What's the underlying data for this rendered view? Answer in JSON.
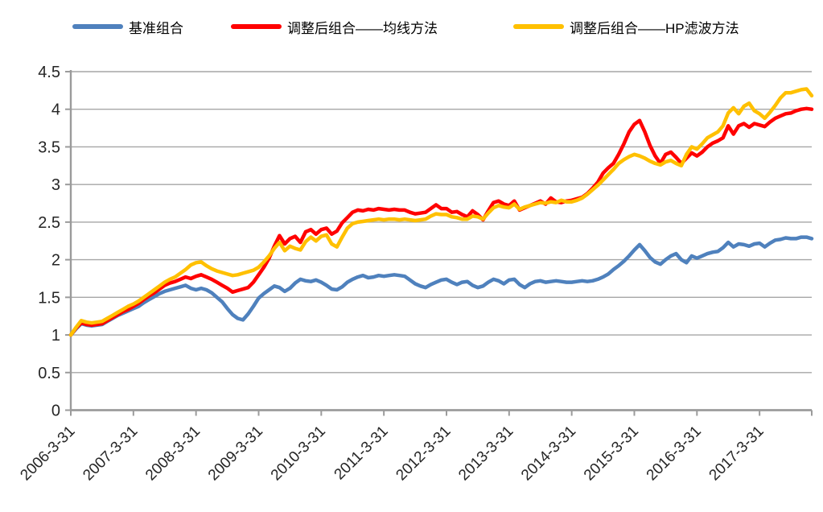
{
  "chart_data": {
    "type": "line",
    "title": "",
    "xlabel": "",
    "ylabel": "",
    "ylim": [
      0,
      4.5
    ],
    "y_tick_step": 0.5,
    "grid": true,
    "legend_position": "top",
    "x_tick_labels": [
      "2006-3-31",
      "2007-3-31",
      "2008-3-31",
      "2009-3-31",
      "2010-3-31",
      "2011-3-31",
      "2012-3-31",
      "2013-3-31",
      "2014-3-31",
      "2015-3-31",
      "2016-3-31",
      "2017-3-31"
    ],
    "x_tick_every_n_points": 12,
    "x_frequency": "monthly",
    "series": [
      {
        "name": "基准组合",
        "color": "#4F81BD",
        "values": [
          1.0,
          1.08,
          1.15,
          1.13,
          1.12,
          1.13,
          1.14,
          1.18,
          1.22,
          1.26,
          1.29,
          1.32,
          1.35,
          1.38,
          1.43,
          1.47,
          1.51,
          1.55,
          1.58,
          1.6,
          1.62,
          1.64,
          1.66,
          1.62,
          1.6,
          1.62,
          1.6,
          1.56,
          1.5,
          1.44,
          1.35,
          1.27,
          1.22,
          1.2,
          1.28,
          1.38,
          1.49,
          1.55,
          1.6,
          1.65,
          1.63,
          1.58,
          1.62,
          1.69,
          1.74,
          1.72,
          1.71,
          1.73,
          1.7,
          1.66,
          1.61,
          1.6,
          1.64,
          1.7,
          1.74,
          1.77,
          1.79,
          1.76,
          1.77,
          1.79,
          1.78,
          1.79,
          1.8,
          1.79,
          1.78,
          1.73,
          1.68,
          1.65,
          1.63,
          1.67,
          1.7,
          1.73,
          1.74,
          1.7,
          1.67,
          1.7,
          1.71,
          1.66,
          1.63,
          1.65,
          1.7,
          1.74,
          1.72,
          1.68,
          1.73,
          1.74,
          1.67,
          1.63,
          1.68,
          1.71,
          1.72,
          1.7,
          1.71,
          1.72,
          1.71,
          1.7,
          1.7,
          1.71,
          1.72,
          1.71,
          1.72,
          1.74,
          1.77,
          1.81,
          1.87,
          1.92,
          1.98,
          2.05,
          2.13,
          2.2,
          2.12,
          2.03,
          1.97,
          1.94,
          2.0,
          2.05,
          2.08,
          2.0,
          1.96,
          2.05,
          2.02,
          2.05,
          2.08,
          2.1,
          2.11,
          2.16,
          2.23,
          2.17,
          2.21,
          2.2,
          2.18,
          2.21,
          2.22,
          2.17,
          2.22,
          2.26,
          2.27,
          2.29,
          2.28,
          2.28,
          2.3,
          2.3,
          2.28
        ]
      },
      {
        "name": "调整后组合——均线方法",
        "color": "#FF0000",
        "values": [
          1.0,
          1.09,
          1.16,
          1.14,
          1.13,
          1.14,
          1.15,
          1.19,
          1.23,
          1.27,
          1.31,
          1.34,
          1.38,
          1.42,
          1.47,
          1.52,
          1.56,
          1.61,
          1.66,
          1.69,
          1.71,
          1.74,
          1.77,
          1.75,
          1.78,
          1.8,
          1.77,
          1.74,
          1.7,
          1.66,
          1.62,
          1.57,
          1.59,
          1.61,
          1.63,
          1.7,
          1.8,
          1.9,
          2.02,
          2.18,
          2.32,
          2.21,
          2.28,
          2.31,
          2.23,
          2.37,
          2.4,
          2.34,
          2.4,
          2.42,
          2.34,
          2.38,
          2.49,
          2.56,
          2.63,
          2.66,
          2.65,
          2.67,
          2.66,
          2.68,
          2.67,
          2.66,
          2.67,
          2.66,
          2.66,
          2.63,
          2.61,
          2.62,
          2.63,
          2.68,
          2.73,
          2.68,
          2.68,
          2.63,
          2.64,
          2.6,
          2.57,
          2.65,
          2.6,
          2.53,
          2.65,
          2.76,
          2.78,
          2.74,
          2.72,
          2.78,
          2.66,
          2.69,
          2.72,
          2.75,
          2.78,
          2.74,
          2.82,
          2.77,
          2.76,
          2.78,
          2.79,
          2.81,
          2.83,
          2.88,
          2.95,
          3.03,
          3.15,
          3.22,
          3.28,
          3.4,
          3.54,
          3.7,
          3.8,
          3.85,
          3.7,
          3.52,
          3.38,
          3.28,
          3.4,
          3.43,
          3.36,
          3.28,
          3.35,
          3.42,
          3.38,
          3.43,
          3.5,
          3.55,
          3.58,
          3.62,
          3.78,
          3.67,
          3.78,
          3.81,
          3.76,
          3.81,
          3.79,
          3.77,
          3.83,
          3.88,
          3.91,
          3.94,
          3.95,
          3.98,
          4.0,
          4.01,
          4.0
        ]
      },
      {
        "name": "调整后组合——HP滤波方法",
        "color": "#FFC000",
        "values": [
          1.0,
          1.1,
          1.19,
          1.17,
          1.16,
          1.17,
          1.18,
          1.22,
          1.26,
          1.3,
          1.34,
          1.38,
          1.41,
          1.45,
          1.5,
          1.55,
          1.6,
          1.65,
          1.7,
          1.74,
          1.77,
          1.82,
          1.87,
          1.93,
          1.96,
          1.97,
          1.92,
          1.88,
          1.85,
          1.83,
          1.81,
          1.79,
          1.8,
          1.82,
          1.84,
          1.86,
          1.9,
          1.97,
          2.05,
          2.15,
          2.23,
          2.12,
          2.18,
          2.15,
          2.13,
          2.24,
          2.3,
          2.25,
          2.31,
          2.33,
          2.21,
          2.17,
          2.3,
          2.42,
          2.48,
          2.5,
          2.51,
          2.52,
          2.53,
          2.54,
          2.53,
          2.54,
          2.54,
          2.53,
          2.54,
          2.53,
          2.52,
          2.53,
          2.54,
          2.58,
          2.61,
          2.6,
          2.6,
          2.57,
          2.56,
          2.54,
          2.54,
          2.58,
          2.57,
          2.54,
          2.62,
          2.69,
          2.72,
          2.7,
          2.69,
          2.74,
          2.67,
          2.7,
          2.72,
          2.74,
          2.76,
          2.75,
          2.77,
          2.76,
          2.79,
          2.77,
          2.77,
          2.79,
          2.82,
          2.87,
          2.93,
          2.99,
          3.06,
          3.13,
          3.2,
          3.28,
          3.33,
          3.37,
          3.4,
          3.38,
          3.35,
          3.31,
          3.28,
          3.26,
          3.3,
          3.32,
          3.28,
          3.25,
          3.4,
          3.5,
          3.47,
          3.54,
          3.62,
          3.66,
          3.7,
          3.78,
          3.95,
          4.02,
          3.94,
          4.04,
          4.08,
          3.98,
          3.94,
          3.88,
          3.96,
          4.05,
          4.15,
          4.22,
          4.22,
          4.24,
          4.26,
          4.27,
          4.18
        ]
      }
    ]
  },
  "style": {
    "grid_color": "#A6A6A6",
    "axis_color": "#9B9B9B",
    "tick_label_color": "#262626",
    "line_width": 4.5
  }
}
